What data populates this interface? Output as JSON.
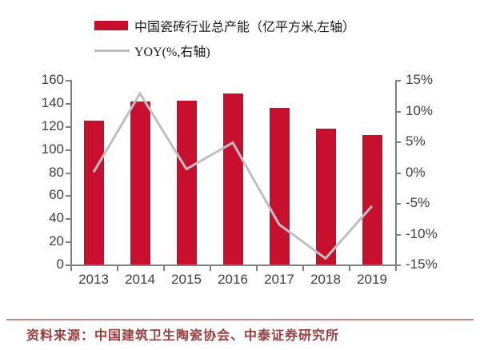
{
  "legend": {
    "capacity_label": "中国瓷砖行业总产能（亿平方米,左轴）",
    "yoy_label": "YOY(%,右轴)"
  },
  "footer": {
    "source": "资料来源：中国建筑卫生陶瓷协会、中泰证券研究所"
  },
  "colors": {
    "bar": "#C8102E",
    "line": "#BFBFBF",
    "axis": "#808080",
    "tick_text": "#3F3F3F",
    "source_text": "#9C3D3D",
    "footer_rule": "#C18C8C"
  },
  "chart_data": {
    "type": "bar",
    "title": "",
    "categories": [
      "2013",
      "2014",
      "2015",
      "2016",
      "2017",
      "2018",
      "2019"
    ],
    "series": [
      {
        "name": "中国瓷砖行业总产能（亿平方米,左轴）",
        "type": "bar",
        "axis": "left",
        "values": [
          125,
          141,
          142,
          148,
          136,
          118,
          112
        ]
      },
      {
        "name": "YOY(%,右轴)",
        "type": "line",
        "axis": "right",
        "values": [
          0.0,
          12.8,
          0.5,
          4.8,
          -8.5,
          -14.0,
          -5.5
        ]
      }
    ],
    "left_axis": {
      "min": 0,
      "max": 160,
      "step": 20,
      "tick_labels": [
        "0",
        "20",
        "40",
        "60",
        "80",
        "100",
        "120",
        "140",
        "160"
      ]
    },
    "right_axis": {
      "min": -15,
      "max": 15,
      "step": 5,
      "tick_labels": [
        "-15%",
        "-10%",
        "-5%",
        "0%",
        "5%",
        "10%",
        "15%"
      ]
    },
    "legend_position": "top-left",
    "grid": false
  }
}
